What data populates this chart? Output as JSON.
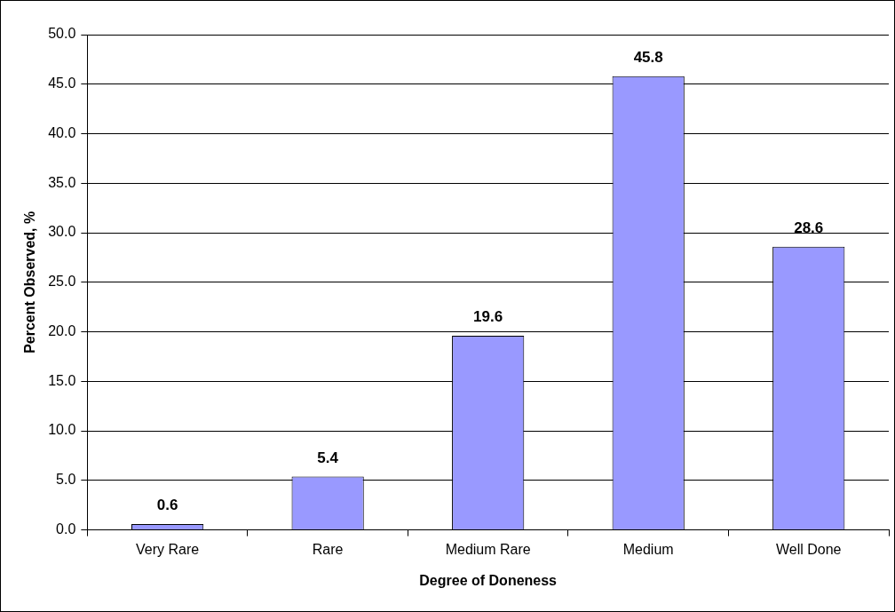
{
  "chart_data": {
    "type": "bar",
    "xlabel": "Degree of Doneness",
    "ylabel": "Percent Observed, %",
    "categories": [
      "Very Rare",
      "Rare",
      "Medium Rare",
      "Medium",
      "Well Done"
    ],
    "values": [
      0.6,
      5.4,
      19.6,
      45.8,
      28.6
    ],
    "color": "#9999ff",
    "ylim": [
      0,
      50
    ],
    "yticks": [
      {
        "value": 0,
        "label": "0.0"
      },
      {
        "value": 5,
        "label": "5.0"
      },
      {
        "value": 10,
        "label": "10.0"
      },
      {
        "value": 15,
        "label": "15.0"
      },
      {
        "value": 20,
        "label": "20.0"
      },
      {
        "value": 25,
        "label": "25.0"
      },
      {
        "value": 30,
        "label": "30.0"
      },
      {
        "value": 35,
        "label": "35.0"
      },
      {
        "value": 40,
        "label": "40.0"
      },
      {
        "value": 45,
        "label": "45.0"
      },
      {
        "value": 50,
        "label": "50.0"
      }
    ],
    "grid": "y",
    "legend": false,
    "data_labels": true
  }
}
